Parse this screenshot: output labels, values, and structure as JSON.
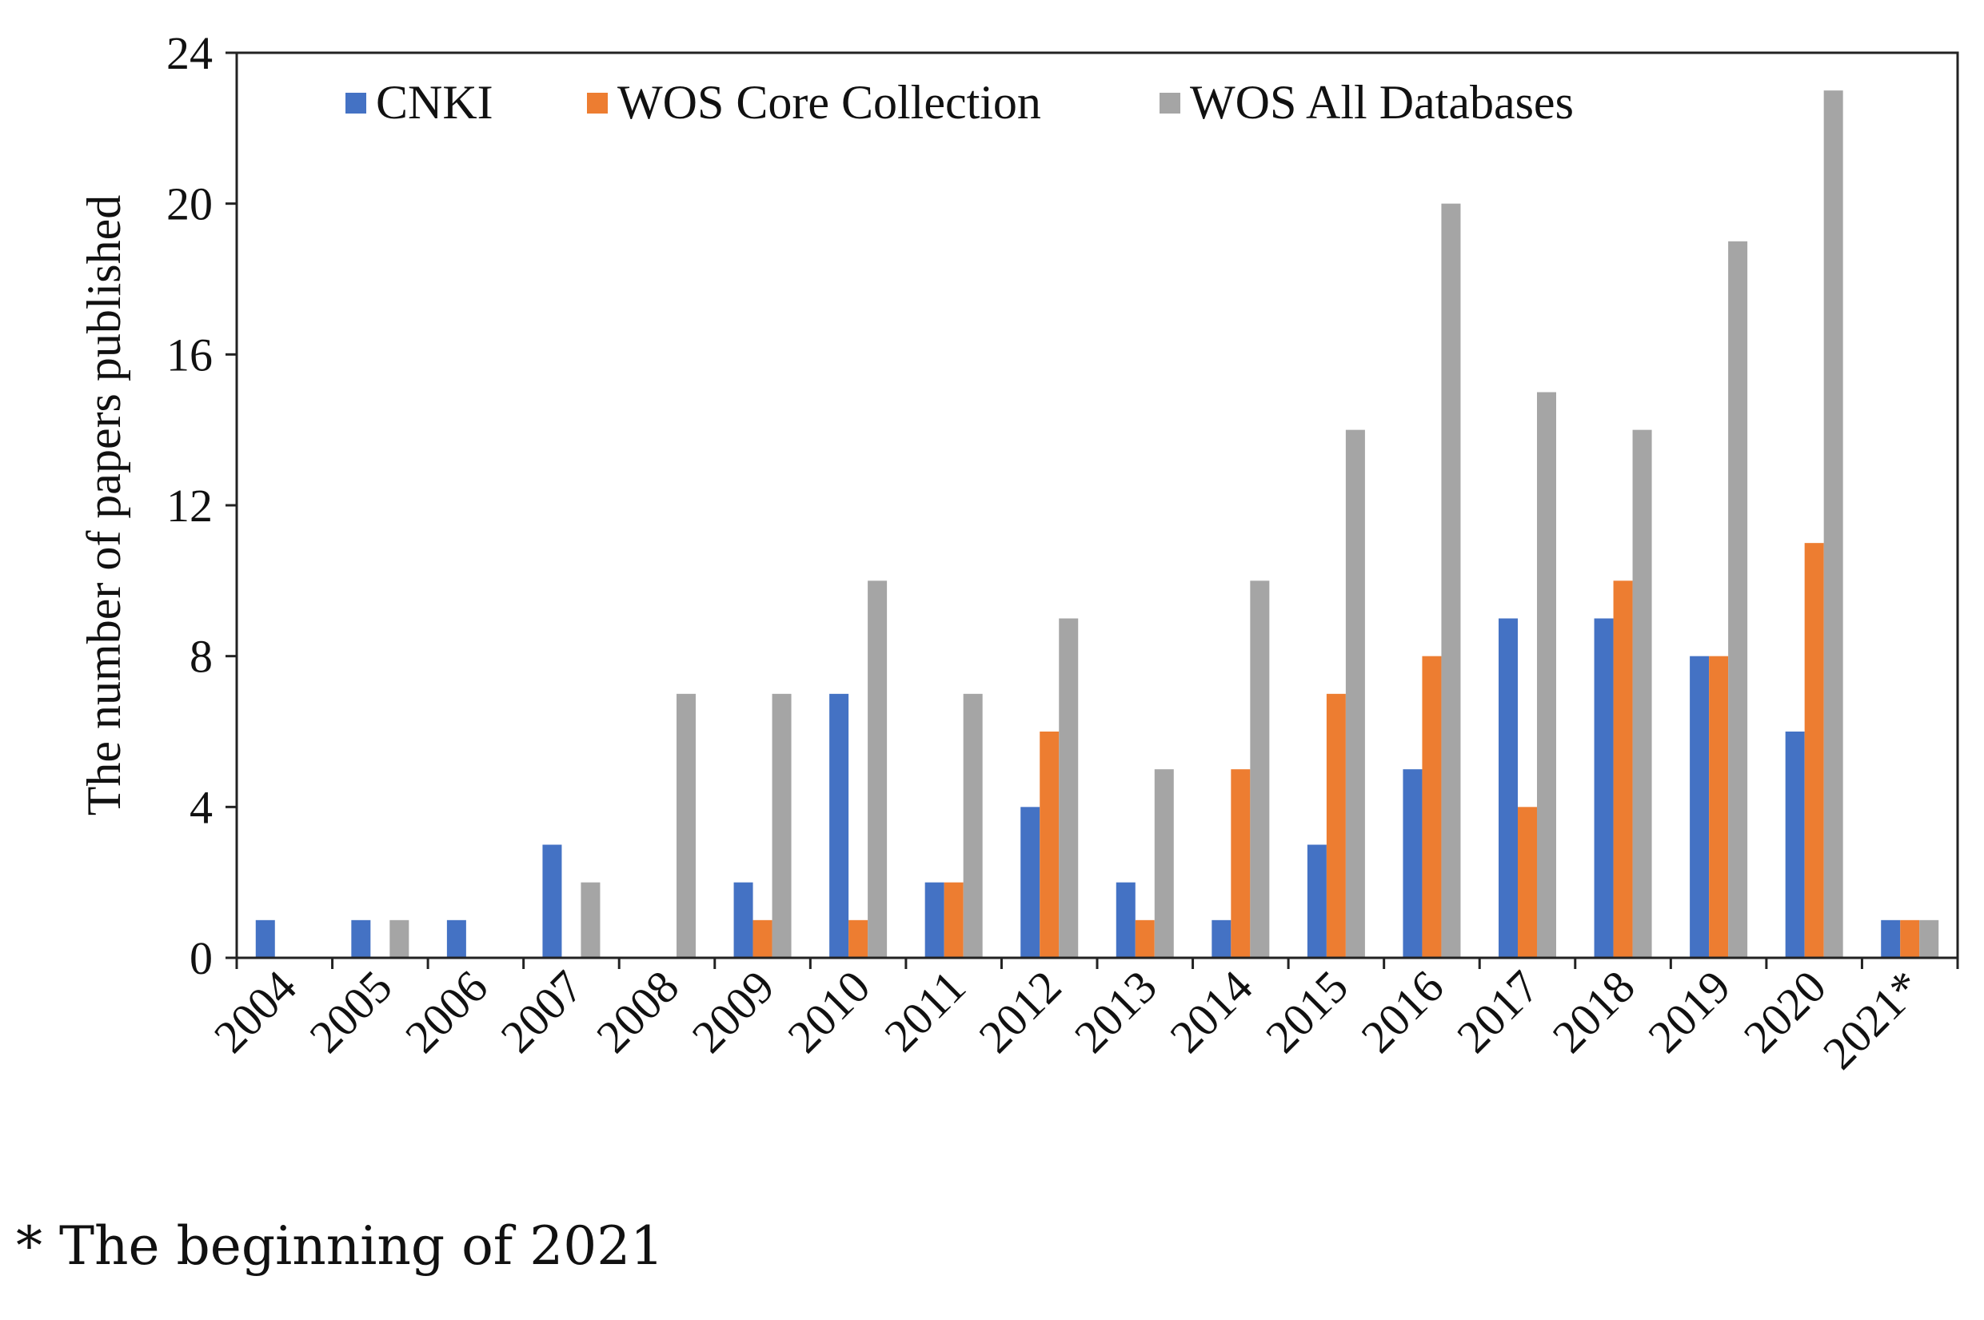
{
  "chart_data": {
    "type": "bar",
    "title": "",
    "xlabel": "",
    "ylabel": "The number of papers published",
    "ylim": [
      0,
      24
    ],
    "yticks": [
      0,
      4,
      8,
      12,
      16,
      20,
      24
    ],
    "legend_position": "top",
    "categories": [
      "2004",
      "2005",
      "2006",
      "2007",
      "2008",
      "2009",
      "2010",
      "2011",
      "2012",
      "2013",
      "2014",
      "2015",
      "2016",
      "2017",
      "2018",
      "2019",
      "2020",
      "2021*"
    ],
    "series": [
      {
        "name": "CNKI",
        "color": "#4472c4",
        "values": [
          1,
          1,
          1,
          3,
          0,
          2,
          7,
          2,
          4,
          2,
          1,
          3,
          5,
          9,
          9,
          8,
          6,
          1
        ]
      },
      {
        "name": "WOS Core Collection",
        "color": "#ed7d31",
        "values": [
          0,
          0,
          0,
          0,
          0,
          1,
          1,
          2,
          6,
          1,
          5,
          7,
          8,
          4,
          10,
          8,
          11,
          1
        ]
      },
      {
        "name": "WOS All Databases",
        "color": "#a5a5a5",
        "values": [
          0,
          1,
          0,
          2,
          7,
          7,
          10,
          7,
          9,
          5,
          10,
          14,
          20,
          15,
          14,
          19,
          23,
          1
        ]
      }
    ]
  },
  "footnote": "* The beginning of 2021"
}
